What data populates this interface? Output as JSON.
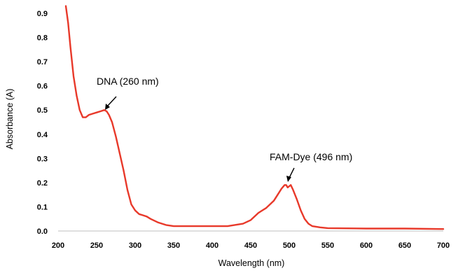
{
  "chart_data": {
    "type": "line",
    "xlabel": "Wavelength (nm)",
    "ylabel": "Absorbance (A)",
    "xlim": [
      200,
      700
    ],
    "ylim": [
      0,
      0.9
    ],
    "x_ticks": [
      200,
      250,
      300,
      350,
      400,
      450,
      500,
      550,
      600,
      650,
      700
    ],
    "x_tick_labels": [
      "200",
      "250",
      "300",
      "350",
      "400",
      "450",
      "500",
      "550",
      "600",
      "650",
      "700"
    ],
    "y_ticks": [
      0,
      0.1,
      0.2,
      0.3,
      0.4,
      0.5,
      0.6,
      0.7,
      0.8,
      0.9
    ],
    "y_tick_labels": [
      "0.0",
      "0.1",
      "0.2",
      "0.3",
      "0.4",
      "0.5",
      "0.6",
      "0.7",
      "0.8",
      "0.9"
    ],
    "grid": false,
    "legend": "none",
    "line_color": "#e8392a",
    "series": [
      {
        "x": [
          210,
          213,
          216,
          220,
          224,
          228,
          232,
          236,
          240,
          245,
          250,
          255,
          260,
          263,
          266,
          270,
          275,
          280,
          285,
          290,
          295,
          300,
          305,
          310,
          315,
          320,
          330,
          340,
          350,
          360,
          380,
          400,
          420,
          440,
          450,
          455,
          460,
          465,
          470,
          475,
          480,
          485,
          490,
          494,
          496,
          498,
          500,
          502,
          505,
          510,
          515,
          520,
          525,
          530,
          540,
          550,
          600,
          650,
          700
        ],
        "y": [
          0.93,
          0.86,
          0.76,
          0.64,
          0.56,
          0.5,
          0.47,
          0.47,
          0.48,
          0.485,
          0.49,
          0.495,
          0.5,
          0.495,
          0.48,
          0.45,
          0.39,
          0.32,
          0.25,
          0.17,
          0.11,
          0.085,
          0.07,
          0.065,
          0.06,
          0.05,
          0.035,
          0.025,
          0.02,
          0.02,
          0.02,
          0.02,
          0.02,
          0.03,
          0.045,
          0.06,
          0.075,
          0.085,
          0.095,
          0.11,
          0.125,
          0.15,
          0.175,
          0.19,
          0.19,
          0.18,
          0.185,
          0.19,
          0.17,
          0.13,
          0.085,
          0.05,
          0.03,
          0.02,
          0.015,
          0.012,
          0.01,
          0.01,
          0.008
        ]
      }
    ],
    "annotations": [
      {
        "text": "DNA (260 nm)",
        "x": 260,
        "y": 0.5
      },
      {
        "text": "FAM-Dye (496 nm)",
        "x": 496,
        "y": 0.19
      }
    ]
  }
}
